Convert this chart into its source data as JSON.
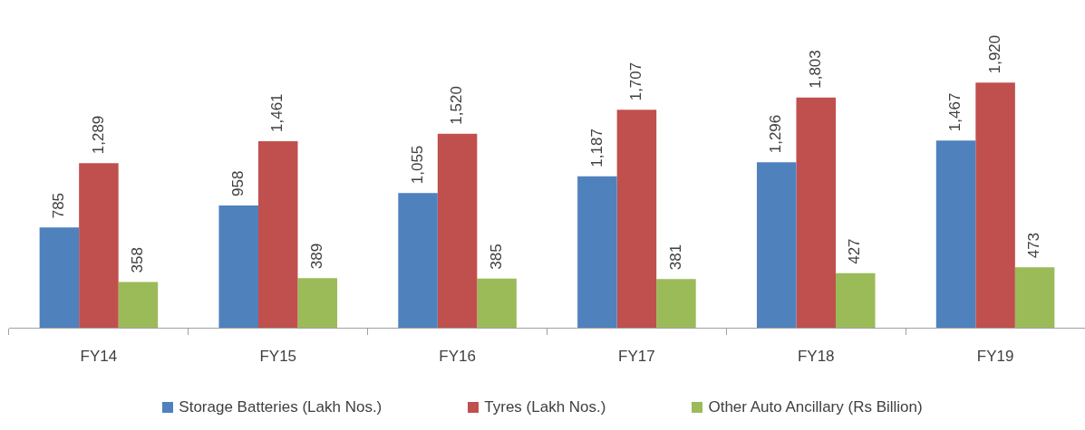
{
  "chart_data": {
    "type": "bar",
    "categories": [
      "FY14",
      "FY15",
      "FY16",
      "FY17",
      "FY18",
      "FY19"
    ],
    "series": [
      {
        "name": "Storage Batteries (Lakh Nos.)",
        "color": "#4f81bd",
        "values": [
          785,
          958,
          1055,
          1187,
          1296,
          1467
        ],
        "value_labels": [
          "785",
          "958",
          "1,055",
          "1,187",
          "1,296",
          "1,467"
        ]
      },
      {
        "name": "Tyres (Lakh Nos.)",
        "color": "#c0504d",
        "values": [
          1289,
          1461,
          1520,
          1707,
          1803,
          1920
        ],
        "value_labels": [
          "1,289",
          "1,461",
          "1,520",
          "1,707",
          "1,803",
          "1,920"
        ]
      },
      {
        "name": "Other Auto Ancillary (Rs Billion)",
        "color": "#9bbb59",
        "values": [
          358,
          389,
          385,
          381,
          427,
          473
        ],
        "value_labels": [
          "358",
          "389",
          "385",
          "381",
          "427",
          "473"
        ]
      }
    ],
    "legend": "bottom"
  }
}
